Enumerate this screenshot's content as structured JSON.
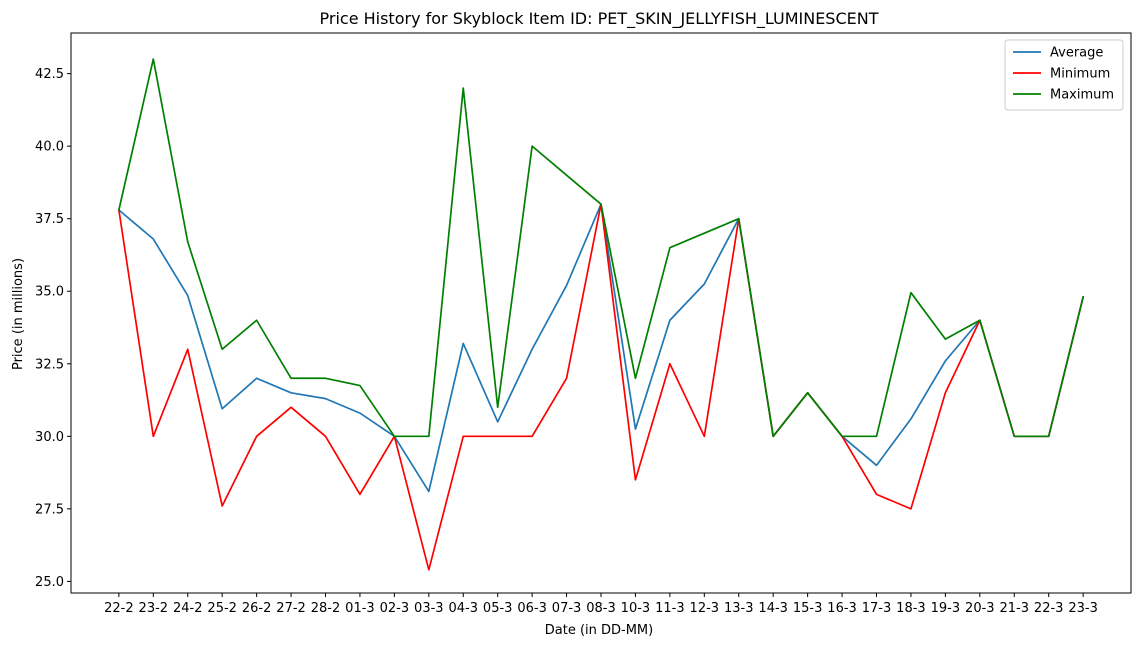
{
  "chart_data": {
    "type": "line",
    "title": "Price History for Skyblock Item ID: PET_SKIN_JELLYFISH_LUMINESCENT",
    "xlabel": "Date (in DD-MM)",
    "ylabel": "Price (in millions)",
    "categories": [
      "22-2",
      "23-2",
      "24-2",
      "25-2",
      "26-2",
      "27-2",
      "28-2",
      "01-3",
      "02-3",
      "03-3",
      "04-3",
      "05-3",
      "06-3",
      "07-3",
      "08-3",
      "10-3",
      "11-3",
      "12-3",
      "13-3",
      "14-3",
      "15-3",
      "16-3",
      "17-3",
      "18-3",
      "19-3",
      "20-3",
      "21-3",
      "22-3",
      "23-3"
    ],
    "ylim": [
      24.6,
      43.9
    ],
    "yticks": [
      25.0,
      27.5,
      30.0,
      32.5,
      35.0,
      37.5,
      40.0,
      42.5
    ],
    "ytick_labels": [
      "25.0",
      "27.5",
      "30.0",
      "32.5",
      "35.0",
      "37.5",
      "40.0",
      "42.5"
    ],
    "grid": false,
    "legend_position": "top-right",
    "series": [
      {
        "name": "Average",
        "color": "#1f77b4",
        "values": [
          37.8,
          36.8,
          34.85,
          30.95,
          32.0,
          31.5,
          31.3,
          30.8,
          30.0,
          28.1,
          33.2,
          30.5,
          33.0,
          35.2,
          38.0,
          30.25,
          34.0,
          35.25,
          37.5,
          30.0,
          31.5,
          30.0,
          29.0,
          30.6,
          32.6,
          34.0,
          30.0,
          30.0,
          34.8
        ]
      },
      {
        "name": "Minimum",
        "color": "#ff0000",
        "values": [
          37.8,
          30.0,
          33.0,
          27.6,
          30.0,
          31.0,
          30.0,
          28.0,
          30.0,
          25.4,
          30.0,
          30.0,
          30.0,
          32.0,
          38.0,
          28.5,
          32.5,
          30.0,
          37.5,
          30.0,
          31.5,
          30.0,
          28.0,
          27.5,
          31.5,
          34.0,
          30.0,
          30.0,
          34.8
        ]
      },
      {
        "name": "Maximum",
        "color": "#008000",
        "values": [
          37.8,
          43.0,
          36.7,
          33.0,
          34.0,
          32.0,
          32.0,
          31.75,
          30.0,
          30.0,
          42.0,
          31.0,
          40.0,
          39.0,
          38.0,
          32.0,
          36.5,
          37.0,
          37.5,
          30.0,
          31.5,
          30.0,
          30.0,
          34.95,
          33.35,
          34.0,
          30.0,
          30.0,
          34.8
        ]
      }
    ]
  }
}
